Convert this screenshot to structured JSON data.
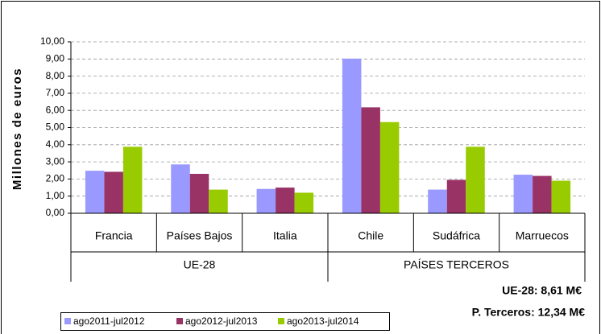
{
  "chart_data": {
    "type": "bar",
    "ylabel": "Millones de euros",
    "categories": [
      "Francia",
      "Países Bajos",
      "Italia",
      "Chile",
      "Sudáfrica",
      "Marruecos"
    ],
    "groups": [
      {
        "name": "UE-28",
        "count": 3
      },
      {
        "name": "PAÍSES TERCEROS",
        "count": 3
      }
    ],
    "series": [
      {
        "name": "ago2011-jul2012",
        "color": "#9999ff",
        "values": [
          2.48,
          2.85,
          1.42,
          9.02,
          1.38,
          2.25
        ]
      },
      {
        "name": "ago2012-jul2013",
        "color": "#993366",
        "values": [
          2.42,
          2.3,
          1.5,
          6.18,
          1.95,
          2.18
        ]
      },
      {
        "name": "ago2013-jul2014",
        "color": "#99cc00",
        "values": [
          3.88,
          1.38,
          1.2,
          5.32,
          3.88,
          1.9
        ]
      }
    ],
    "ylim": [
      0,
      10
    ],
    "yticks": [
      {
        "value": 0,
        "label": "0,00"
      },
      {
        "value": 1,
        "label": "1,00"
      },
      {
        "value": 2,
        "label": "2,00"
      },
      {
        "value": 3,
        "label": "3,00"
      },
      {
        "value": 4,
        "label": "4,00"
      },
      {
        "value": 5,
        "label": "5,00"
      },
      {
        "value": 6,
        "label": "6,00"
      },
      {
        "value": 7,
        "label": "7,00"
      },
      {
        "value": 8,
        "label": "8,00"
      },
      {
        "value": 9,
        "label": "9,00"
      },
      {
        "value": 10,
        "label": "10,00"
      }
    ],
    "grid": true,
    "annotations": [
      "UE-28: 8,61  M€",
      "P. Terceros: 12,34 M€"
    ]
  }
}
